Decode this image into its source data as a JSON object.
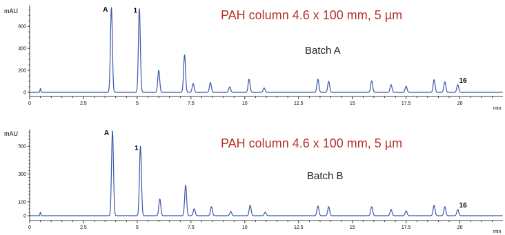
{
  "chart_data": [
    {
      "type": "line",
      "title": "PAH column 4.6 x 100 mm, 5 µm",
      "annotation": "Batch A",
      "ylabel": "mAU",
      "xlabel": "min",
      "xlim": [
        0,
        22
      ],
      "ylim": [
        -30,
        800
      ],
      "x_ticks": [
        0,
        2.5,
        5,
        7.5,
        10,
        12.5,
        15,
        17.5,
        20
      ],
      "x_tick_labels": [
        "0",
        "2.5",
        "5",
        "7.5",
        "10",
        "12.5",
        "15",
        "17.5",
        "20"
      ],
      "y_ticks": [
        0,
        200,
        400,
        600
      ],
      "y_tick_labels": [
        "0",
        "200",
        "400",
        "600"
      ],
      "series": [
        {
          "x": [
            0.5,
            3.8,
            5.1,
            6.0,
            7.2,
            7.6,
            8.4,
            9.3,
            10.2,
            10.9,
            13.4,
            13.9,
            15.9,
            16.8,
            17.5,
            18.8,
            19.3,
            19.9
          ],
          "values": [
            35,
            770,
            760,
            200,
            340,
            80,
            90,
            50,
            120,
            40,
            120,
            100,
            105,
            70,
            55,
            115,
            95,
            70
          ]
        }
      ],
      "peak_labels": [
        {
          "text": "A",
          "x": 3.8
        },
        {
          "text": "1",
          "x": 5.1
        },
        {
          "text": "16",
          "x": 19.9
        }
      ]
    },
    {
      "type": "line",
      "title": "PAH column 4.6 x 100 mm, 5 µm",
      "annotation": "Batch B",
      "ylabel": "mAU",
      "xlabel": "min",
      "xlim": [
        0,
        22
      ],
      "ylim": [
        -20,
        620
      ],
      "x_ticks": [
        0,
        2.5,
        5,
        7.5,
        10,
        12.5,
        15,
        17.5,
        20
      ],
      "x_tick_labels": [
        "0",
        "2.5",
        "5",
        "7.5",
        "10",
        "12.5",
        "15",
        "17.5",
        "20"
      ],
      "y_ticks": [
        0,
        100,
        300,
        500
      ],
      "y_tick_labels": [
        "0",
        "100",
        "300",
        "500"
      ],
      "series": [
        {
          "x": [
            0.5,
            3.85,
            5.15,
            6.05,
            7.25,
            7.65,
            8.45,
            9.35,
            10.25,
            10.95,
            13.4,
            13.9,
            15.9,
            16.8,
            17.5,
            18.8,
            19.3,
            19.9
          ],
          "values": [
            25,
            610,
            500,
            120,
            220,
            50,
            65,
            30,
            75,
            25,
            70,
            65,
            65,
            45,
            35,
            75,
            65,
            45
          ]
        }
      ],
      "peak_labels": [
        {
          "text": "A",
          "x": 3.85
        },
        {
          "text": "1",
          "x": 5.15
        },
        {
          "text": "16",
          "x": 19.9
        }
      ]
    }
  ]
}
